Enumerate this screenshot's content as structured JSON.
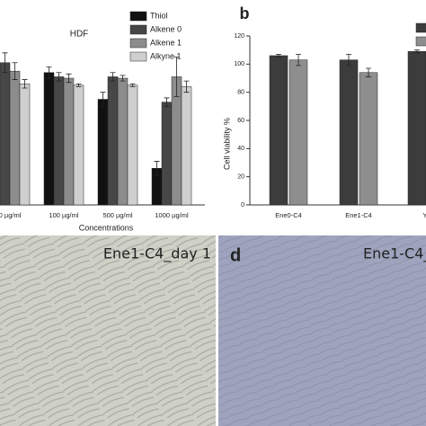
{
  "chart_data": [
    {
      "type": "bar",
      "title": "HDF",
      "x_label": "Concentrations",
      "categories": [
        "0 µg/ml",
        "100 µg/ml",
        "500 µg/ml",
        "1000 µg/ml"
      ],
      "series": [
        {
          "name": "Thiol",
          "color": "#111111",
          "values": [
            98,
            94,
            75,
            26
          ],
          "errors": [
            8,
            4,
            5,
            5
          ]
        },
        {
          "name": "Alkene 0",
          "color": "#474747",
          "values": [
            101,
            91,
            91,
            73
          ],
          "errors": [
            7,
            3,
            3,
            3
          ]
        },
        {
          "name": "Alkene 1",
          "color": "#8c8c8c",
          "values": [
            95,
            90,
            90,
            91
          ],
          "errors": [
            6,
            3,
            2,
            14
          ]
        },
        {
          "name": "Alkyne 1",
          "color": "#cfcfcf",
          "values": [
            86,
            85,
            85,
            84
          ],
          "errors": [
            3,
            1,
            1,
            4
          ]
        }
      ],
      "ylim": [
        0,
        120
      ]
    },
    {
      "type": "bar",
      "panel": "b",
      "y_label": "Cell viability %",
      "categories": [
        "Ene0-C4",
        "Ene1-C4",
        "Yn"
      ],
      "series": [
        {
          "color": "#3c3c3c",
          "values": [
            106,
            103,
            109
          ],
          "errors": [
            1,
            4,
            1
          ]
        },
        {
          "color": "#8e8e8e",
          "values": [
            103,
            94,
            null
          ],
          "errors": [
            4,
            3,
            null
          ]
        }
      ],
      "ylim": [
        0,
        120
      ],
      "yticks": [
        0,
        20,
        40,
        60,
        80,
        100,
        120
      ]
    }
  ],
  "images": [
    {
      "label": "Ene1-C4_day 1"
    },
    {
      "panel": "d",
      "label": "Ene1-C4_"
    }
  ]
}
